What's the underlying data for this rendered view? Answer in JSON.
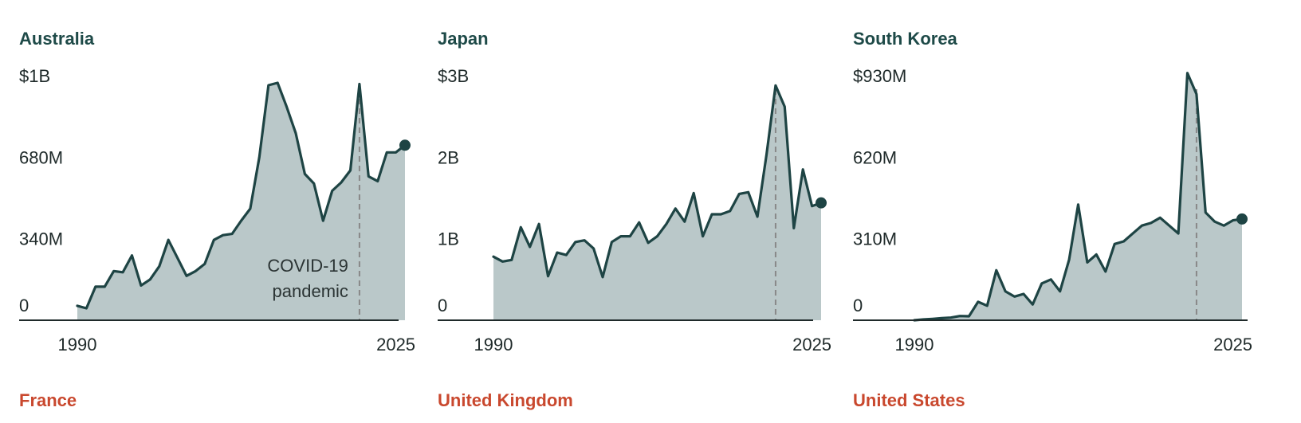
{
  "colors": {
    "line": "#1e4444",
    "area": "#bac8c9",
    "axis": "#1f2a2a",
    "covid_line": "#888888",
    "title_dark": "#1e4a48",
    "title_red": "#c9482e"
  },
  "annotation": {
    "line1": "COVID-19",
    "line2": "pandemic",
    "year": 2021
  },
  "next_row_titles": [
    "France",
    "United Kingdom",
    "United States"
  ],
  "chart_data": [
    {
      "type": "area",
      "title": "Australia",
      "y_ticks": [
        {
          "value": 0,
          "label": "0"
        },
        {
          "value": 340,
          "label": "340M"
        },
        {
          "value": 680,
          "label": "680M"
        },
        {
          "value": 1020,
          "label": "$1B"
        }
      ],
      "ylim": [
        0,
        1020
      ],
      "xlim": [
        1982,
        2028
      ],
      "x_ticks": [
        {
          "value": 1990,
          "label": "1990"
        },
        {
          "value": 2025,
          "label": "2025"
        }
      ],
      "covid_year": 2021,
      "x": [
        1990,
        1991,
        1992,
        1993,
        1994,
        1995,
        1996,
        1997,
        1998,
        1999,
        2000,
        2001,
        2002,
        2003,
        2004,
        2005,
        2006,
        2007,
        2008,
        2009,
        2010,
        2011,
        2012,
        2013,
        2014,
        2015,
        2016,
        2017,
        2018,
        2019,
        2020,
        2021,
        2022,
        2023,
        2024,
        2025,
        2026
      ],
      "values": [
        60,
        50,
        140,
        140,
        205,
        200,
        270,
        145,
        170,
        225,
        335,
        260,
        185,
        205,
        235,
        335,
        355,
        360,
        415,
        465,
        680,
        980,
        990,
        890,
        780,
        610,
        570,
        415,
        540,
        575,
        625,
        985,
        600,
        580,
        700,
        700,
        730
      ]
    },
    {
      "type": "area",
      "title": "Japan",
      "y_ticks": [
        {
          "value": 0,
          "label": "0"
        },
        {
          "value": 1000,
          "label": "1B"
        },
        {
          "value": 2000,
          "label": "2B"
        },
        {
          "value": 3000,
          "label": "$3B"
        }
      ],
      "ylim": [
        0,
        3000
      ],
      "xlim": [
        1982,
        2028
      ],
      "x_ticks": [
        {
          "value": 1990,
          "label": "1990"
        },
        {
          "value": 2025,
          "label": "2025"
        }
      ],
      "covid_year": 2021,
      "x": [
        1990,
        1991,
        1992,
        1993,
        1994,
        1995,
        1996,
        1997,
        1998,
        1999,
        2000,
        2001,
        2002,
        2003,
        2004,
        2005,
        2006,
        2007,
        2008,
        2009,
        2010,
        2011,
        2012,
        2013,
        2014,
        2015,
        2016,
        2017,
        2018,
        2019,
        2020,
        2021,
        2022,
        2023,
        2024,
        2025,
        2026
      ],
      "values": [
        780,
        720,
        740,
        1140,
        900,
        1180,
        540,
        830,
        800,
        960,
        980,
        880,
        530,
        960,
        1030,
        1030,
        1200,
        950,
        1030,
        1180,
        1370,
        1210,
        1560,
        1030,
        1300,
        1300,
        1340,
        1550,
        1570,
        1270,
        2030,
        2880,
        2620,
        1130,
        1850,
        1400,
        1440
      ]
    },
    {
      "type": "area",
      "title": "South Korea",
      "y_ticks": [
        {
          "value": 0,
          "label": "0"
        },
        {
          "value": 310,
          "label": "310M"
        },
        {
          "value": 620,
          "label": "620M"
        },
        {
          "value": 930,
          "label": "$930M"
        }
      ],
      "ylim": [
        0,
        930
      ],
      "xlim": [
        1982,
        2028
      ],
      "x_ticks": [
        {
          "value": 1990,
          "label": "1990"
        },
        {
          "value": 2025,
          "label": "2025"
        }
      ],
      "covid_year": 2021,
      "x": [
        1990,
        1991,
        1992,
        1993,
        1994,
        1995,
        1996,
        1997,
        1998,
        1999,
        2000,
        2001,
        2002,
        2003,
        2004,
        2005,
        2006,
        2007,
        2008,
        2009,
        2010,
        2011,
        2012,
        2013,
        2014,
        2015,
        2016,
        2017,
        2018,
        2019,
        2020,
        2021,
        2022,
        2023,
        2024,
        2025,
        2026
      ],
      "values": [
        0,
        3,
        5,
        8,
        10,
        16,
        15,
        70,
        55,
        190,
        110,
        90,
        100,
        60,
        140,
        155,
        110,
        230,
        440,
        220,
        250,
        185,
        290,
        300,
        330,
        360,
        370,
        390,
        360,
        330,
        940,
        860,
        410,
        375,
        360,
        380,
        385
      ]
    }
  ]
}
